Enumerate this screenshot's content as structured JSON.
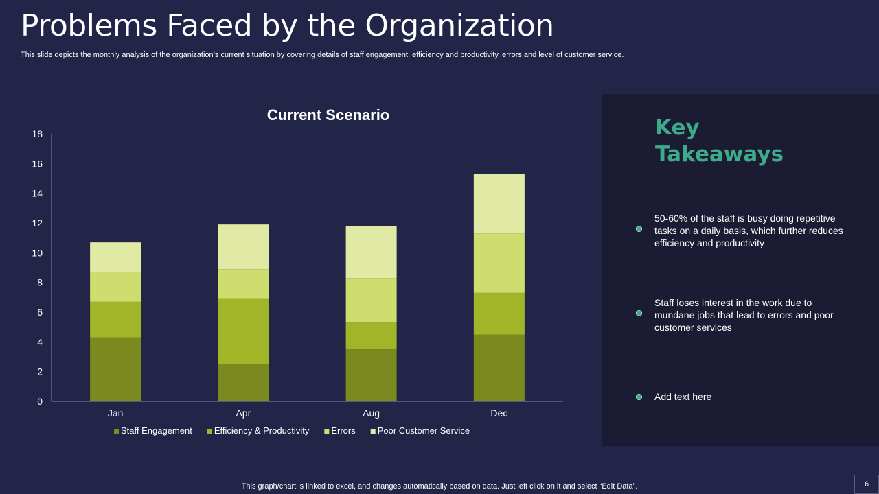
{
  "slide": {
    "title": "Problems Faced by the Organization",
    "subtitle": "This slide depicts the monthly analysis of the organization’s current situation by covering details of staff engagement, efficiency and productivity, errors and level of customer service.",
    "footer": "This graph/chart is linked to excel, and changes automatically based on data. Just left click on it and select “Edit Data”.",
    "page_number": "6"
  },
  "takeaways": {
    "title": "Key Takeaways",
    "items": [
      "50-60% of the staff is busy doing repetitive tasks on a daily basis, which further reduces efficiency and productivity",
      "Staff loses interest in the work due to mundane jobs that lead to errors and poor customer services",
      "Add text here"
    ]
  },
  "colors": {
    "background": "#232548",
    "panel": "#1b1c33",
    "accent": "#3dab87"
  },
  "chart_data": {
    "type": "bar",
    "stacked": true,
    "title": "Current Scenario",
    "categories": [
      "Jan",
      "Apr",
      "Aug",
      "Dec"
    ],
    "series": [
      {
        "name": "Staff Engagement",
        "color": "#7a8a1e",
        "values": [
          4.3,
          2.5,
          3.5,
          4.5
        ]
      },
      {
        "name": "Efficiency & Productivity",
        "color": "#a2b529",
        "values": [
          2.4,
          4.4,
          1.8,
          2.8
        ]
      },
      {
        "name": "Errors",
        "color": "#cfdd6f",
        "values": [
          2.0,
          2.0,
          3.0,
          4.0
        ]
      },
      {
        "name": "Poor Customer Service",
        "color": "#e1eaa4",
        "values": [
          2.0,
          3.0,
          3.5,
          4.0
        ]
      }
    ],
    "ylim": [
      0,
      18
    ],
    "yticks": [
      0,
      2,
      4,
      6,
      8,
      10,
      12,
      14,
      16,
      18
    ],
    "legend": "bottom",
    "grid": false
  }
}
